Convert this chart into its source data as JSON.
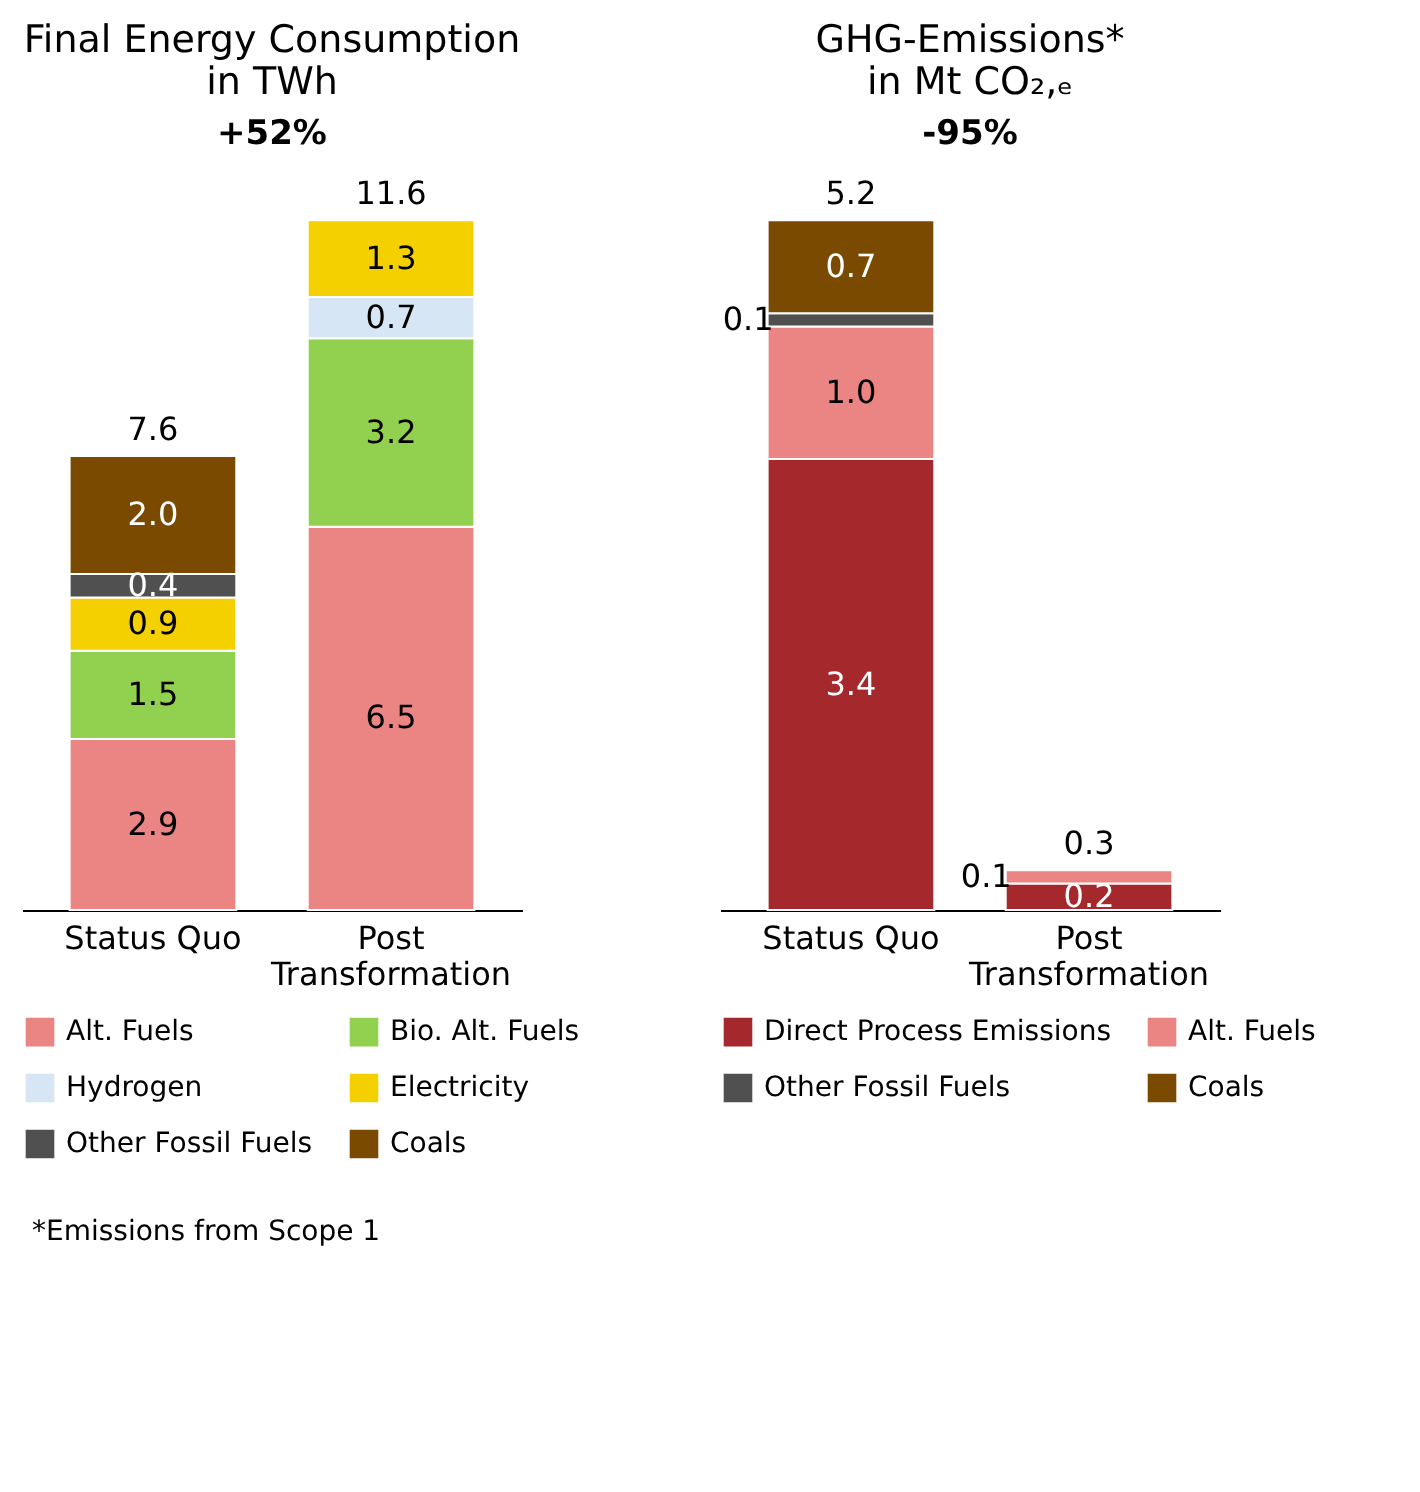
{
  "chart_data": [
    {
      "type": "bar",
      "stacked": true,
      "title": "Final Energy Consumption",
      "subtitle": "in TWh",
      "categories": [
        "Status Quo",
        "Post Transformation"
      ],
      "legend": "bottom",
      "totals": [
        "7.6",
        "11.6"
      ],
      "annotations": [
        "+52%"
      ],
      "series": [
        {
          "name": "Alt. Fuels",
          "color": "#eb8584",
          "values": [
            2.9,
            6.5
          ],
          "value_labels": [
            "2.9",
            "6.5"
          ]
        },
        {
          "name": "Bio. Alt. Fuels",
          "color": "#92d050",
          "values": [
            1.5,
            3.2
          ],
          "value_labels": [
            "1.5",
            "3.2"
          ]
        },
        {
          "name": "Hydrogen",
          "color": "#d6e6f4",
          "values": [
            null,
            0.7
          ],
          "value_labels": [
            null,
            "0.7"
          ]
        },
        {
          "name": "Electricity",
          "color": "#f5d000",
          "values": [
            0.9,
            1.3
          ],
          "value_labels": [
            "0.9",
            "1.3"
          ]
        },
        {
          "name": "Other Fossil Fuels",
          "color": "#505050",
          "values": [
            0.4,
            null
          ],
          "value_labels": [
            "0.4",
            null
          ]
        },
        {
          "name": "Coals",
          "color": "#7a4a00",
          "values": [
            2.0,
            null
          ],
          "value_labels": [
            "2.0",
            null
          ]
        }
      ]
    },
    {
      "type": "bar",
      "stacked": true,
      "title": "GHG-Emissions*",
      "subtitle": "in Mt CO₂,ₑ",
      "categories": [
        "Status Quo",
        "Post Transformation"
      ],
      "legend": "bottom",
      "totals": [
        "5.2",
        "0.3"
      ],
      "annotations": [
        "-95%",
        "*Emissions from Scope 1"
      ],
      "series": [
        {
          "name": "Direct Process Emissions",
          "color": "#a5282c",
          "values": [
            3.4,
            0.2
          ],
          "value_labels": [
            "3.4",
            "0.2"
          ]
        },
        {
          "name": "Alt. Fuels",
          "color": "#eb8584",
          "values": [
            1.0,
            0.1
          ],
          "value_labels": [
            "1.0",
            "0.1"
          ]
        },
        {
          "name": "Other Fossil Fuels",
          "color": "#505050",
          "values": [
            0.1,
            null
          ],
          "value_labels": [
            "0.1",
            null
          ]
        },
        {
          "name": "Coals",
          "color": "#7a4a00",
          "values": [
            0.7,
            null
          ],
          "value_labels": [
            "0.7",
            null
          ]
        }
      ]
    }
  ]
}
